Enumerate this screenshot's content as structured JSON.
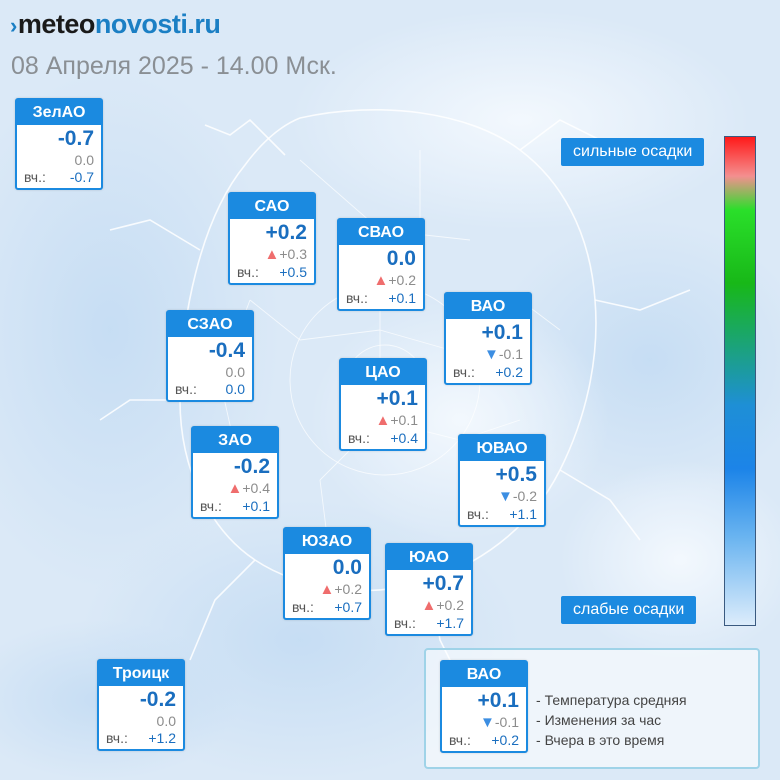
{
  "header": {
    "logo_part1": "meteo",
    "logo_part2": "novosti.ru",
    "datetime": "08 Апреля 2025 - 14.00 Мск."
  },
  "yesterday_prefix": "вч.:",
  "districts": [
    {
      "name": "ЗелАО",
      "temp": "-0.7",
      "hour_arrow": "",
      "hour_change": "0.0",
      "yesterday": "-0.7"
    },
    {
      "name": "САО",
      "temp": "+0.2",
      "hour_arrow": "up",
      "hour_change": "+0.3",
      "yesterday": "+0.5"
    },
    {
      "name": "СВАО",
      "temp": "0.0",
      "hour_arrow": "up",
      "hour_change": "+0.2",
      "yesterday": "+0.1"
    },
    {
      "name": "ВАО",
      "temp": "+0.1",
      "hour_arrow": "down",
      "hour_change": "-0.1",
      "yesterday": "+0.2"
    },
    {
      "name": "СЗАО",
      "temp": "-0.4",
      "hour_arrow": "",
      "hour_change": "0.0",
      "yesterday": "0.0"
    },
    {
      "name": "ЦАО",
      "temp": "+0.1",
      "hour_arrow": "up",
      "hour_change": "+0.1",
      "yesterday": "+0.4"
    },
    {
      "name": "ЗАО",
      "temp": "-0.2",
      "hour_arrow": "up",
      "hour_change": "+0.4",
      "yesterday": "+0.1"
    },
    {
      "name": "ЮВАО",
      "temp": "+0.5",
      "hour_arrow": "down",
      "hour_change": "-0.2",
      "yesterday": "+1.1"
    },
    {
      "name": "ЮЗАО",
      "temp": "0.0",
      "hour_arrow": "up",
      "hour_change": "+0.2",
      "yesterday": "+0.7"
    },
    {
      "name": "ЮАО",
      "temp": "+0.7",
      "hour_arrow": "up",
      "hour_change": "+0.2",
      "yesterday": "+1.7"
    },
    {
      "name": "Троицк",
      "temp": "-0.2",
      "hour_arrow": "",
      "hour_change": "0.0",
      "yesterday": "+1.2"
    }
  ],
  "precip_scale": {
    "top_label": "сильные осадки",
    "bottom_label": "слабые осадки",
    "colors": [
      "#ff1a1a",
      "#f48f8f",
      "#2adf2a",
      "#18b818",
      "#1e8fd6",
      "#1c84e8",
      "#6ab4f0",
      "#dcecfb"
    ]
  },
  "legend": {
    "example": {
      "name": "ВАО",
      "temp": "+0.1",
      "hour_arrow": "down",
      "hour_change": "-0.1",
      "yesterday": "+0.2"
    },
    "lines": [
      "Температура средняя",
      "Изменения за час",
      "Вчера в это время"
    ]
  },
  "colors": {
    "accent": "#1b8ae0",
    "temp_text": "#1a6ebf",
    "arrow_up": "#ef6d6d",
    "arrow_down": "#3c8ee2"
  }
}
